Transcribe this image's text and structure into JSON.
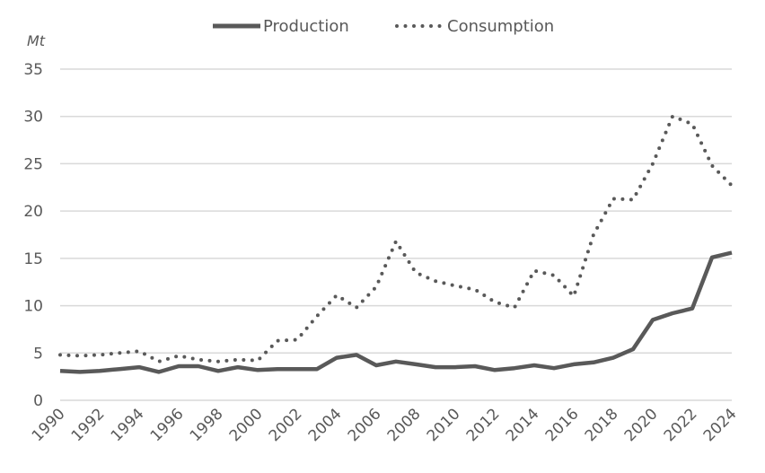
{
  "chart_data": {
    "type": "line",
    "title": "",
    "xlabel": "",
    "ylabel": "Mt",
    "ylim": [
      0,
      35
    ],
    "yticks": [
      0,
      5,
      10,
      15,
      20,
      25,
      30,
      35
    ],
    "xticks": [
      1990,
      1992,
      1994,
      1996,
      1998,
      2000,
      2002,
      2004,
      2006,
      2008,
      2010,
      2012,
      2014,
      2016,
      2018,
      2020,
      2022,
      2024
    ],
    "grid": true,
    "legend_position": "top-center",
    "x": [
      1990,
      1991,
      1992,
      1993,
      1994,
      1995,
      1996,
      1997,
      1998,
      1999,
      2000,
      2001,
      2002,
      2003,
      2004,
      2005,
      2006,
      2007,
      2008,
      2009,
      2010,
      2011,
      2012,
      2013,
      2014,
      2015,
      2016,
      2017,
      2018,
      2019,
      2020,
      2021,
      2022,
      2023,
      2024
    ],
    "series": [
      {
        "name": "Production",
        "style": "solid",
        "color": "#595959",
        "values": [
          3.1,
          3.0,
          3.1,
          3.3,
          3.5,
          3.0,
          3.6,
          3.6,
          3.1,
          3.5,
          3.2,
          3.3,
          3.3,
          3.3,
          4.5,
          4.8,
          3.7,
          4.1,
          3.8,
          3.5,
          3.5,
          3.6,
          3.2,
          3.4,
          3.7,
          3.4,
          3.8,
          4.0,
          4.5,
          5.4,
          8.5,
          9.2,
          9.7,
          15.1,
          15.6
        ]
      },
      {
        "name": "Consumption",
        "style": "dotted",
        "color": "#595959",
        "values": [
          4.8,
          4.7,
          4.8,
          5.0,
          5.2,
          4.1,
          4.7,
          4.3,
          4.1,
          4.3,
          4.2,
          6.3,
          6.4,
          8.9,
          11.1,
          9.8,
          12.0,
          16.8,
          13.5,
          12.6,
          12.1,
          11.7,
          10.4,
          9.8,
          13.7,
          13.2,
          11.0,
          17.5,
          21.3,
          21.2,
          25.0,
          30.0,
          29.2,
          24.8,
          22.7
        ]
      }
    ]
  }
}
